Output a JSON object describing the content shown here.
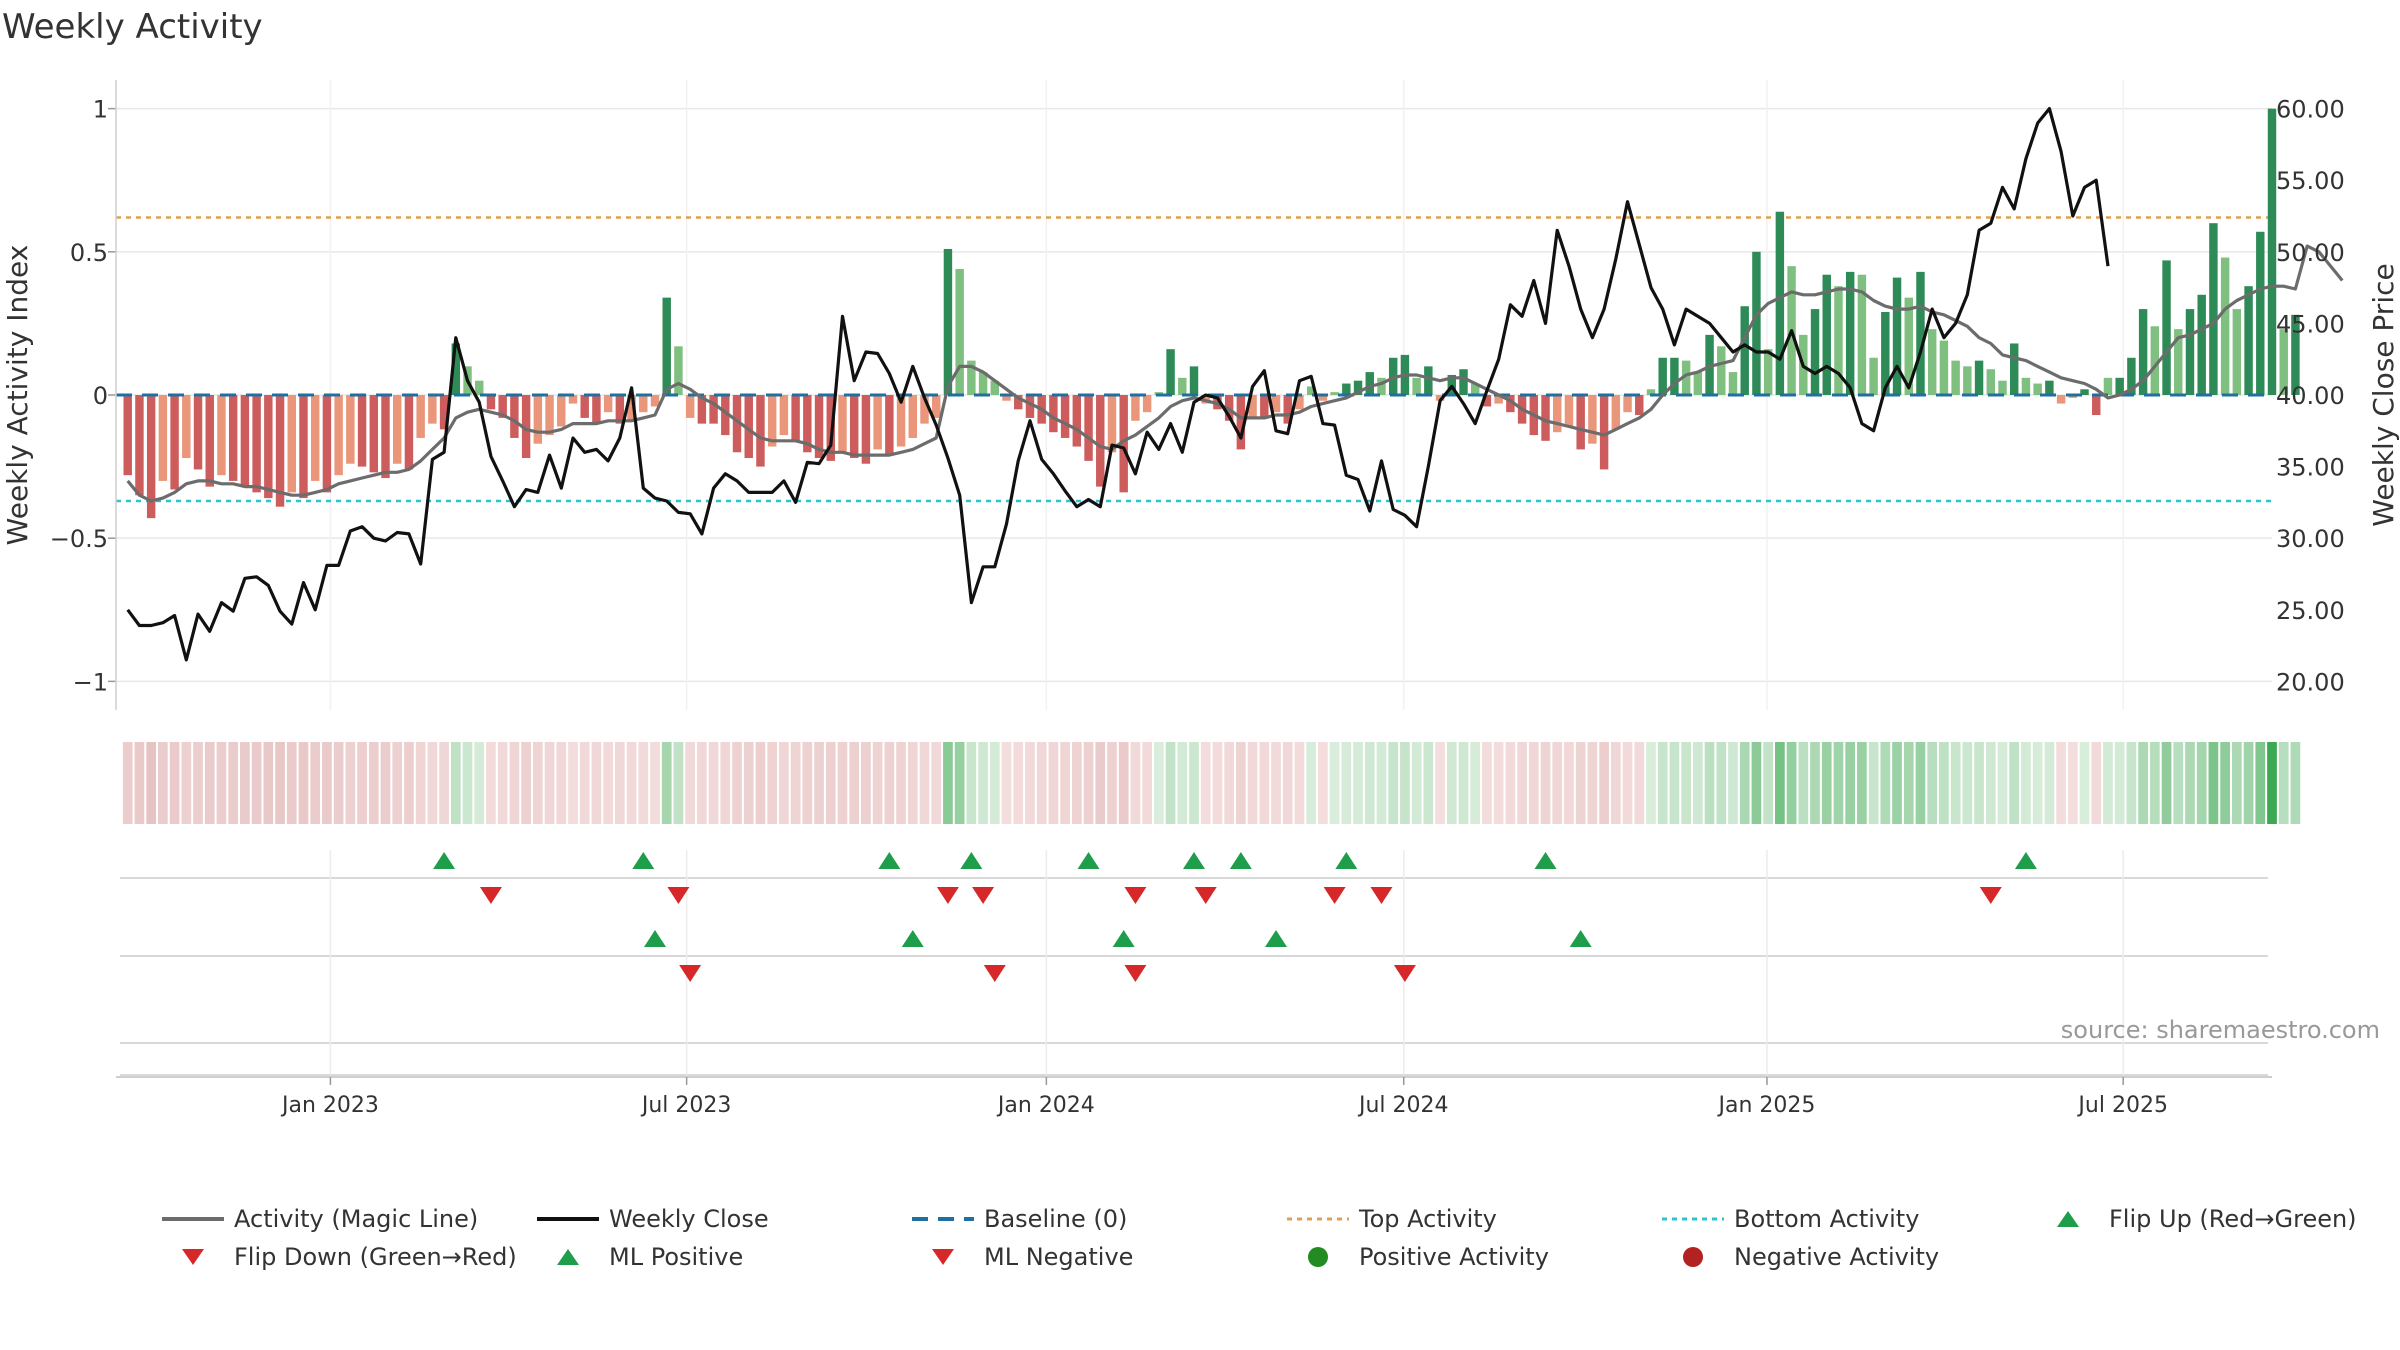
{
  "chart_data": {
    "type": "bar",
    "title": "Weekly Activity",
    "source": "source: sharemaestro.com",
    "ylabel_left": "Weekly Activity Index",
    "ylabel_right": "Weekly Close Price",
    "ylim_left": [
      -1.1,
      1.1
    ],
    "ylim_right": [
      18,
      62
    ],
    "yticks_left": [
      {
        "value": 1,
        "label": "1"
      },
      {
        "value": 0.5,
        "label": "0.5"
      },
      {
        "value": 0,
        "label": "0"
      },
      {
        "value": -0.5,
        "label": "−0.5"
      },
      {
        "value": -1,
        "label": "−1"
      }
    ],
    "yticks_right": [
      {
        "value": 60,
        "label": "60.00"
      },
      {
        "value": 55,
        "label": "55.00"
      },
      {
        "value": 50,
        "label": "50.00"
      },
      {
        "value": 45,
        "label": "45.00"
      },
      {
        "value": 40,
        "label": "40.00"
      },
      {
        "value": 35,
        "label": "35.00"
      },
      {
        "value": 30,
        "label": "30.00"
      },
      {
        "value": 25,
        "label": "25.00"
      },
      {
        "value": 20,
        "label": "20.00"
      }
    ],
    "x_week_range": [
      -1,
      183
    ],
    "xticks": [
      {
        "week": 17.3,
        "label": "Jan 2023"
      },
      {
        "week": 47.7,
        "label": "Jul 2023"
      },
      {
        "week": 78.4,
        "label": "Jan 2024"
      },
      {
        "week": 108.9,
        "label": "Jul 2024"
      },
      {
        "week": 139.9,
        "label": "Jan 2025"
      },
      {
        "week": 170.3,
        "label": "Jul 2025"
      }
    ],
    "top_activity": 0.62,
    "bottom_activity": -0.37,
    "baseline": 0,
    "activity": [
      -0.28,
      -0.35,
      -0.43,
      -0.3,
      -0.33,
      -0.22,
      -0.26,
      -0.32,
      -0.28,
      -0.3,
      -0.32,
      -0.34,
      -0.36,
      -0.39,
      -0.34,
      -0.36,
      -0.3,
      -0.34,
      -0.28,
      -0.24,
      -0.25,
      -0.27,
      -0.29,
      -0.24,
      -0.26,
      -0.15,
      -0.1,
      -0.12,
      0.18,
      0.1,
      0.05,
      -0.05,
      -0.08,
      -0.15,
      -0.22,
      -0.17,
      -0.14,
      -0.11,
      -0.03,
      -0.08,
      -0.1,
      -0.06,
      -0.1,
      -0.09,
      -0.06,
      -0.04,
      0.34,
      0.17,
      -0.08,
      -0.1,
      -0.1,
      -0.14,
      -0.2,
      -0.22,
      -0.25,
      -0.18,
      -0.14,
      -0.16,
      -0.2,
      -0.22,
      -0.23,
      -0.2,
      -0.22,
      -0.24,
      -0.19,
      -0.21,
      -0.18,
      -0.15,
      -0.1,
      -0.08,
      0.51,
      0.44,
      0.12,
      0.08,
      0.05,
      -0.02,
      -0.05,
      -0.08,
      -0.1,
      -0.13,
      -0.15,
      -0.18,
      -0.23,
      -0.32,
      -0.2,
      -0.34,
      -0.09,
      -0.06,
      0.01,
      0.16,
      0.06,
      0.1,
      -0.03,
      -0.05,
      -0.09,
      -0.19,
      -0.08,
      -0.08,
      -0.06,
      -0.1,
      -0.05,
      0.03,
      -0.02,
      0.01,
      0.04,
      0.05,
      0.08,
      0.06,
      0.13,
      0.14,
      0.06,
      0.1,
      -0.02,
      0.07,
      0.09,
      0.04,
      -0.04,
      -0.03,
      -0.06,
      -0.1,
      -0.14,
      -0.16,
      -0.13,
      -0.11,
      -0.19,
      -0.17,
      -0.26,
      -0.12,
      -0.06,
      -0.07,
      0.02,
      0.13,
      0.13,
      0.12,
      0.08,
      0.21,
      0.17,
      0.08,
      0.31,
      0.5,
      0.16,
      0.64,
      0.45,
      0.21,
      0.3,
      0.42,
      0.38,
      0.43,
      0.42,
      0.13,
      0.29,
      0.41,
      0.34,
      0.43,
      0.23,
      0.19,
      0.12,
      0.1,
      0.12,
      0.09,
      0.05,
      0.18,
      0.06,
      0.04,
      0.05,
      -0.03,
      -0.01,
      0.02,
      -0.07,
      0.06,
      0.06,
      0.13,
      0.3,
      0.24,
      0.47,
      0.23,
      0.3,
      0.35,
      0.6,
      0.48,
      0.3,
      0.38,
      0.57,
      1.0,
      0.23,
      0.28
    ],
    "magic_line": [
      -0.3,
      -0.35,
      -0.37,
      -0.36,
      -0.34,
      -0.31,
      -0.3,
      -0.3,
      -0.31,
      -0.31,
      -0.32,
      -0.32,
      -0.33,
      -0.34,
      -0.35,
      -0.35,
      -0.34,
      -0.33,
      -0.31,
      -0.3,
      -0.29,
      -0.28,
      -0.27,
      -0.27,
      -0.26,
      -0.23,
      -0.19,
      -0.15,
      -0.08,
      -0.06,
      -0.05,
      -0.06,
      -0.07,
      -0.09,
      -0.12,
      -0.13,
      -0.13,
      -0.12,
      -0.1,
      -0.1,
      -0.1,
      -0.09,
      -0.09,
      -0.09,
      -0.08,
      -0.07,
      0.02,
      0.04,
      0.02,
      -0.01,
      -0.03,
      -0.06,
      -0.09,
      -0.12,
      -0.15,
      -0.16,
      -0.16,
      -0.16,
      -0.17,
      -0.19,
      -0.2,
      -0.2,
      -0.21,
      -0.21,
      -0.21,
      -0.21,
      -0.2,
      -0.19,
      -0.17,
      -0.15,
      0.03,
      0.1,
      0.1,
      0.08,
      0.05,
      0.02,
      -0.01,
      -0.03,
      -0.05,
      -0.08,
      -0.1,
      -0.12,
      -0.15,
      -0.18,
      -0.19,
      -0.16,
      -0.14,
      -0.11,
      -0.08,
      -0.04,
      -0.02,
      -0.01,
      -0.02,
      -0.03,
      -0.05,
      -0.08,
      -0.08,
      -0.08,
      -0.07,
      -0.07,
      -0.06,
      -0.04,
      -0.03,
      -0.02,
      -0.01,
      0.01,
      0.03,
      0.04,
      0.06,
      0.07,
      0.07,
      0.06,
      0.05,
      0.06,
      0.06,
      0.04,
      0.02,
      0.0,
      -0.02,
      -0.05,
      -0.07,
      -0.09,
      -0.1,
      -0.11,
      -0.12,
      -0.13,
      -0.14,
      -0.12,
      -0.1,
      -0.08,
      -0.05,
      0.0,
      0.04,
      0.07,
      0.08,
      0.1,
      0.11,
      0.12,
      0.2,
      0.28,
      0.32,
      0.34,
      0.36,
      0.35,
      0.35,
      0.36,
      0.37,
      0.37,
      0.36,
      0.33,
      0.31,
      0.3,
      0.3,
      0.31,
      0.29,
      0.28,
      0.26,
      0.24,
      0.2,
      0.18,
      0.14,
      0.13,
      0.12,
      0.1,
      0.08,
      0.06,
      0.05,
      0.04,
      0.02,
      -0.01,
      0.0,
      0.02,
      0.05,
      0.1,
      0.15,
      0.2,
      0.21,
      0.23,
      0.25,
      0.3,
      0.33,
      0.35,
      0.37,
      0.38,
      0.38,
      0.37,
      0.52,
      0.5,
      0.45,
      0.4
    ],
    "weekly_close": [
      25,
      23.9,
      23.9,
      24.1,
      24.6,
      21.5,
      24.7,
      23.5,
      25.5,
      24.9,
      27.2,
      27.3,
      26.7,
      24.9,
      24,
      26.9,
      25,
      28.1,
      28.1,
      30.5,
      30.8,
      30,
      29.8,
      30.4,
      30.3,
      28.2,
      35.5,
      36,
      44,
      41,
      39.5,
      35.7,
      34,
      32.2,
      33.4,
      33.2,
      35.8,
      33.5,
      37,
      36,
      36.2,
      35.4,
      37,
      40.5,
      33.5,
      32.8,
      32.6,
      31.8,
      31.7,
      30.3,
      33.5,
      34.5,
      34,
      33.2,
      33.2,
      33.2,
      34,
      32.5,
      35.3,
      35.2,
      36.5,
      45.5,
      41,
      43,
      42.9,
      41.5,
      39.5,
      42,
      39.8,
      37.9,
      35.6,
      33,
      25.5,
      28,
      28,
      31,
      35.4,
      38.2,
      35.5,
      34.5,
      33.3,
      32.2,
      32.7,
      32.2,
      36.5,
      36.3,
      34.5,
      37.4,
      36.2,
      38,
      36,
      39.5,
      40,
      39.8,
      38.5,
      37,
      40.6,
      41.7,
      37.5,
      37.3,
      41,
      41.3,
      38,
      37.9,
      34.4,
      34.1,
      31.9,
      35.4,
      32,
      31.6,
      30.8,
      35,
      39.6,
      40.6,
      39.4,
      38,
      40.3,
      42.5,
      46.3,
      45.5,
      48,
      45,
      51.5,
      49,
      46,
      44,
      46,
      49.5,
      53.5,
      50.5,
      47.5,
      46,
      43.5,
      46,
      45.5,
      45,
      44,
      43,
      43.5,
      43,
      43,
      42.5,
      44.5,
      42,
      41.5,
      42,
      41.5,
      40.5,
      38,
      37.5,
      40.5,
      42,
      40.5,
      43,
      46,
      44,
      45,
      47,
      51.5,
      52,
      54.5,
      53,
      56.5,
      59,
      60,
      57,
      52.5,
      54.5,
      55,
      49
    ],
    "flip_up_weeks": [
      27,
      44,
      65,
      72,
      82,
      91,
      95,
      104,
      121,
      162
    ],
    "flip_down_weeks": [
      31,
      47,
      70,
      73,
      86,
      92,
      103,
      107,
      159
    ],
    "ml_positive_weeks": [
      45,
      67,
      85,
      98,
      124
    ],
    "ml_negative_weeks": [
      48,
      74,
      86,
      109
    ],
    "legend": [
      {
        "key": "magic",
        "label": "Activity (Magic Line)"
      },
      {
        "key": "close",
        "label": "Weekly Close"
      },
      {
        "key": "baseline",
        "label": "Baseline (0)"
      },
      {
        "key": "top",
        "label": "Top Activity"
      },
      {
        "key": "bottom",
        "label": "Bottom Activity"
      },
      {
        "key": "flipup",
        "label": "Flip Up (Red→Green)"
      },
      {
        "key": "flipdown",
        "label": "Flip Down (Green→Red)"
      },
      {
        "key": "mlpos",
        "label": "ML Positive"
      },
      {
        "key": "mlneg",
        "label": "ML Negative"
      },
      {
        "key": "posact",
        "label": "Positive Activity"
      },
      {
        "key": "negact",
        "label": "Negative Activity"
      }
    ],
    "colors": {
      "pos_dark": "#2e8b57",
      "pos_light": "#7fbf7f",
      "neg_dark": "#cd5c5c",
      "neg_light": "#e9967a",
      "magic": "#6c6c6c",
      "close": "#111111",
      "baseline": "#1f6f9f",
      "top": "#e0a050",
      "bottom": "#2ec4cf",
      "marker_up": "#1e9e4a",
      "marker_down": "#d62828",
      "pos_dot": "#228b22",
      "neg_dot": "#b22222",
      "grid": "#e8e8e8"
    }
  }
}
